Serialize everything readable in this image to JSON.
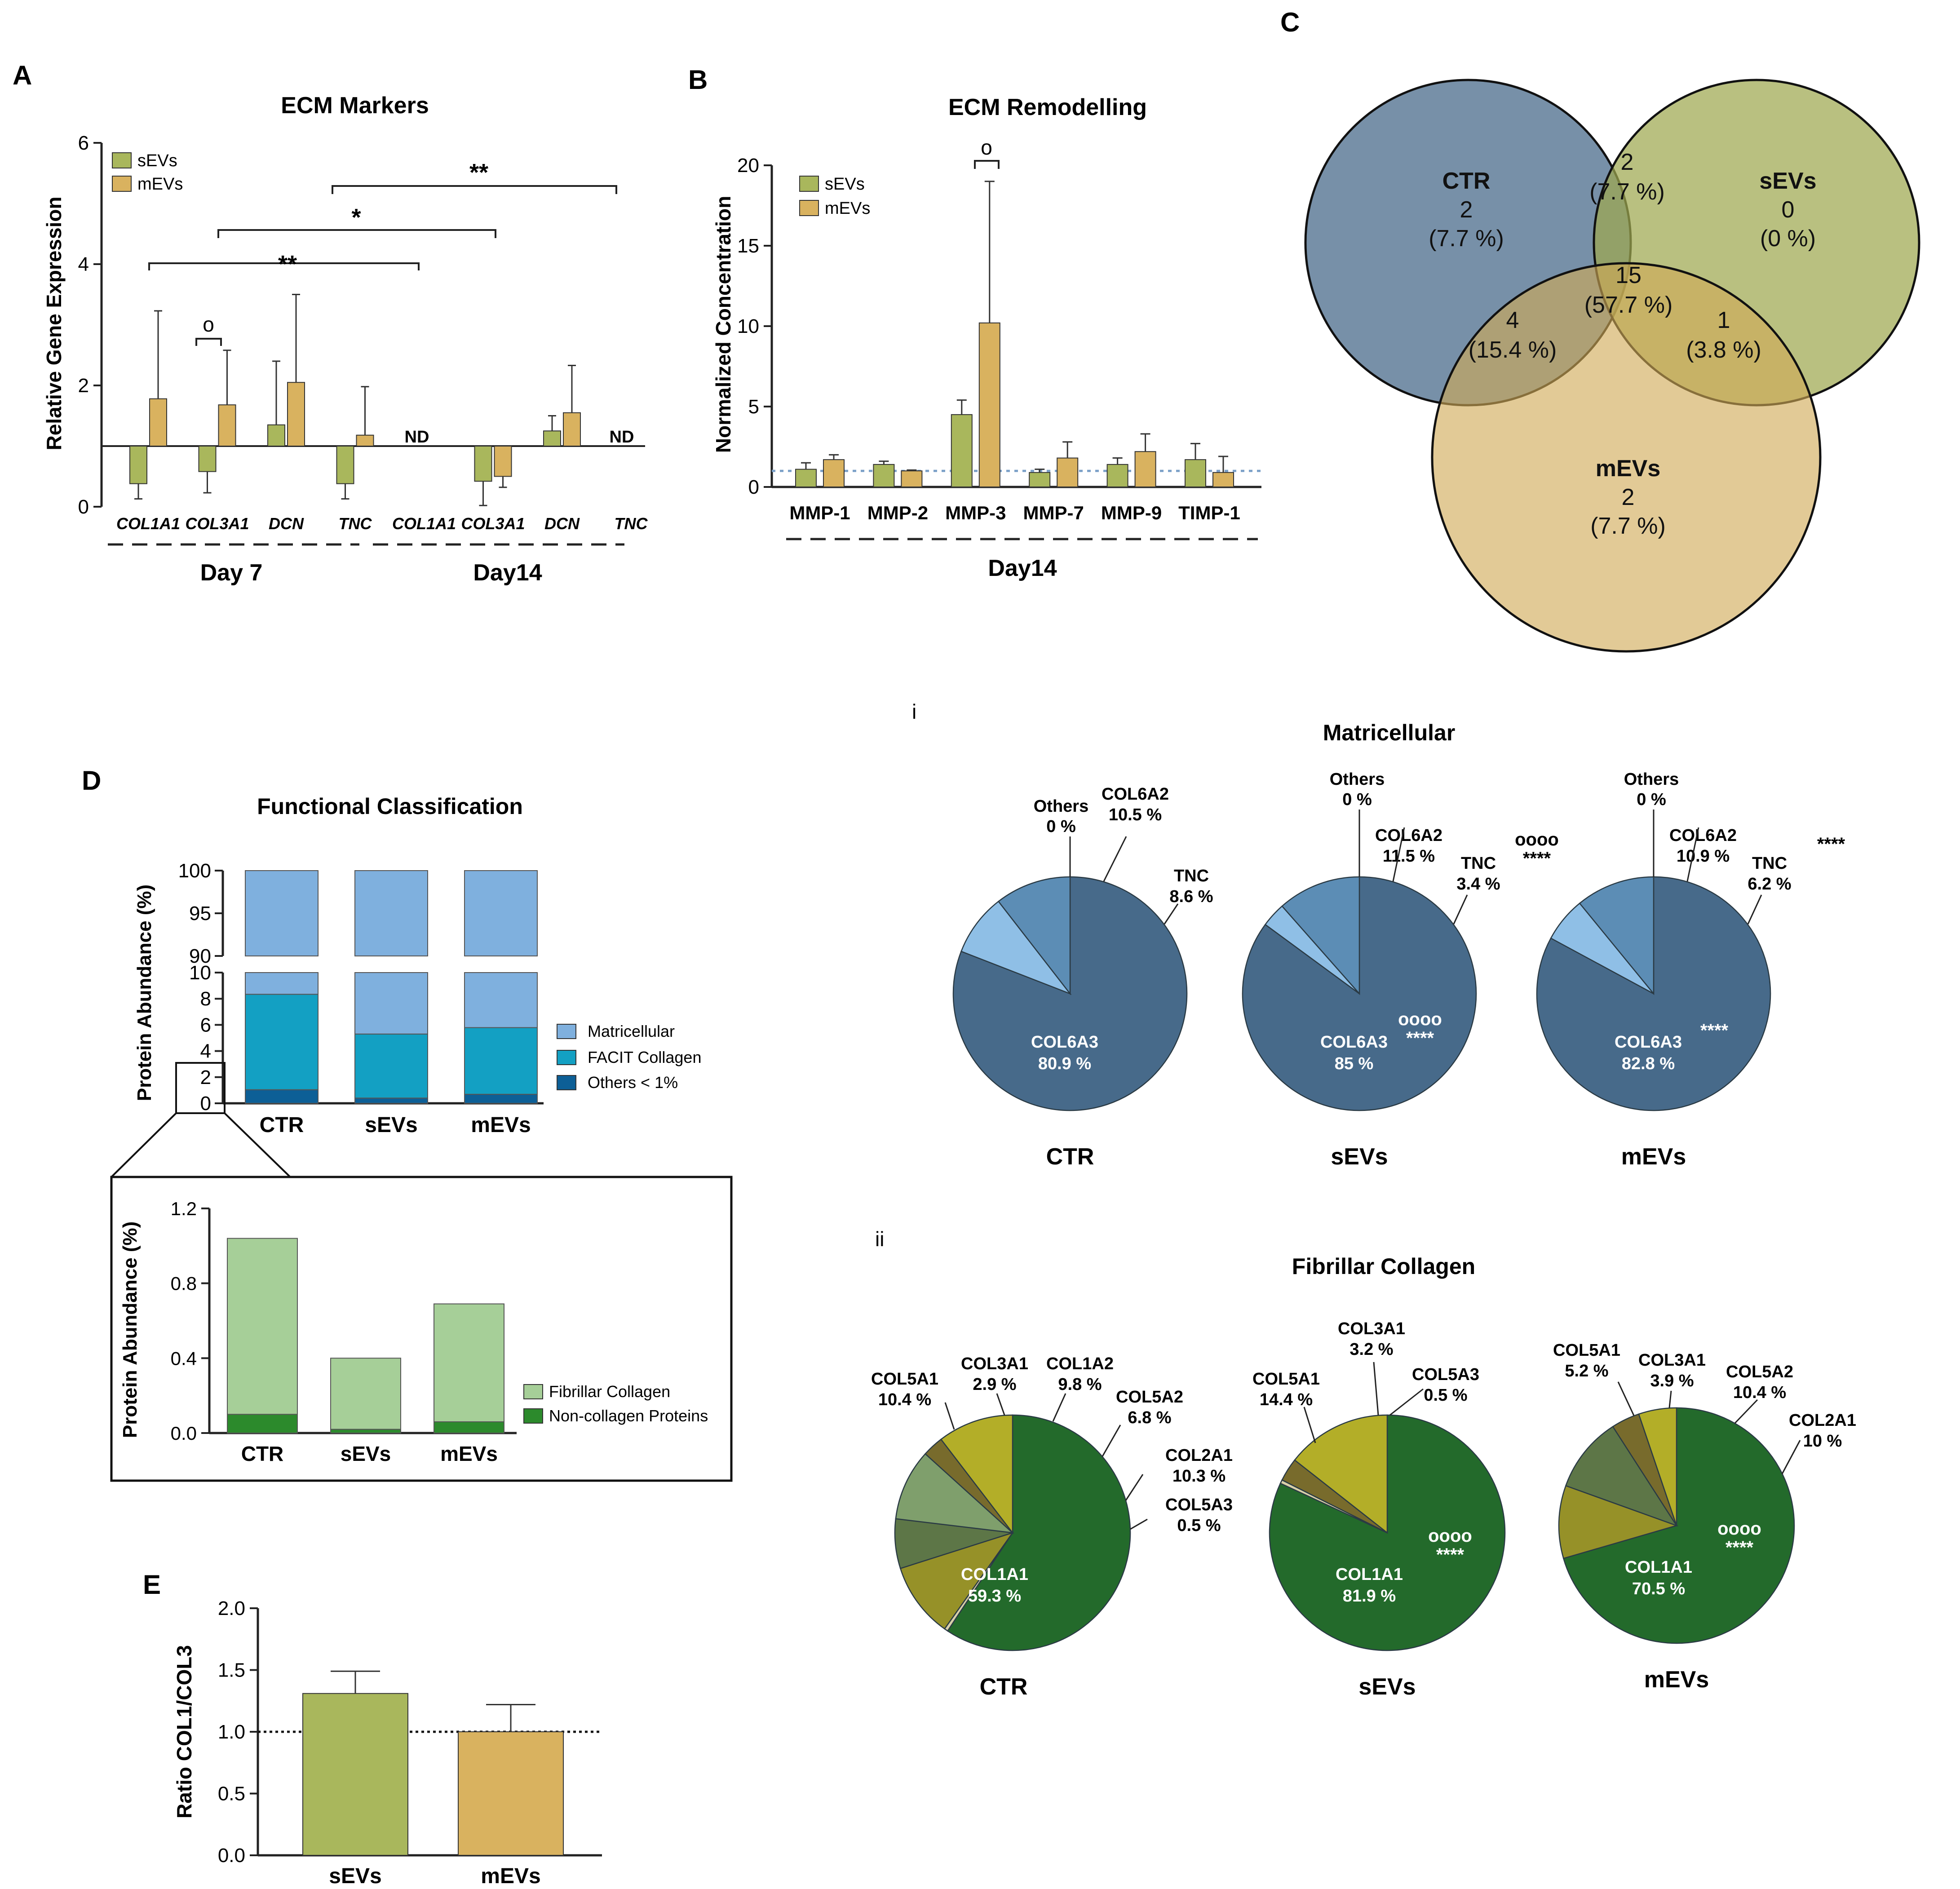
{
  "colors": {
    "sevs": "#a9b75c",
    "mevs": "#d9b25f",
    "ctr_circle": "#6b87a1",
    "sevs_circle": "#9ea84f",
    "mevs_circle": "#d1aa55",
    "matricellular": "#7fb0de",
    "facit": "#13a0c3",
    "others_blue": "#0d5f96",
    "fibrillar": "#a6cf98",
    "noncollagen": "#2c8a2c",
    "col6a3": "#476a8a",
    "col6a2": "#5c8db5",
    "tnc": "#8fbfe6",
    "col1a1": "#236a2b",
    "col5a1": "#b3ae28",
    "col3a1": "#786b2c",
    "col1a2": "#7f9f6c",
    "col5a2": "#5d7647",
    "col2a1": "#969128",
    "col5a3": "#d8d0a8"
  },
  "panel_a": {
    "letter": "A",
    "title": "ECM Markers",
    "ylabel": "Relative Gene Expression",
    "legend": [
      "sEVs",
      "mEVs"
    ],
    "group_labels": [
      "Day 7",
      "Day14"
    ],
    "nd": "ND",
    "circle_mark": "o",
    "sig": [
      "**",
      "*",
      "**"
    ]
  },
  "panel_b": {
    "letter": "B",
    "title": "ECM Remodelling",
    "ylabel": "Normalized Concentration",
    "legend": [
      "sEVs",
      "mEVs"
    ],
    "group_label": "Day14",
    "circle_mark": "o"
  },
  "panel_c": {
    "letter": "C",
    "ctr": {
      "name": "CTR",
      "count": "2",
      "pct": "(7.7 %)"
    },
    "sevs": {
      "name": "sEVs",
      "count": "0",
      "pct": "(0 %)"
    },
    "mevs": {
      "name": "mEVs",
      "count": "2",
      "pct": "(7.7 %)"
    },
    "ctr_sevs": {
      "count": "2",
      "pct": "(7.7 %)"
    },
    "all": {
      "count": "15",
      "pct": "(57.7 %)"
    },
    "ctr_mevs": {
      "count": "4",
      "pct": "(15.4 %)"
    },
    "sevs_mevs": {
      "count": "1",
      "pct": "(3.8 %)"
    }
  },
  "panel_d": {
    "letter": "D",
    "title": "Functional Classification",
    "ylabel": "Protein Abundance (%)",
    "legend": [
      "Matricellular",
      "FACIT Collagen",
      "Others < 1%"
    ],
    "inset_ylabel": "Protein Abundance (%)",
    "inset_legend": [
      "Fibrillar Collagen",
      "Non-collagen Proteins"
    ]
  },
  "panel_e": {
    "letter": "E",
    "ylabel": "Ratio COL1/COL3"
  },
  "pies_i": {
    "roman": "i",
    "title": "Matricellular",
    "pies": [
      {
        "group": "CTR",
        "main": "COL6A3",
        "main_pct": "80.9 %",
        "inner_sig": [],
        "labels": [
          {
            "name": "Others",
            "pct": "0 %"
          },
          {
            "name": "COL6A2",
            "pct": "10.5 %"
          },
          {
            "name": "TNC",
            "pct": "8.6 %"
          }
        ],
        "tnc_sig": []
      },
      {
        "group": "sEVs",
        "main": "COL6A3",
        "main_pct": "85 %",
        "inner_sig": [
          "oooo",
          "****"
        ],
        "labels": [
          {
            "name": "Others",
            "pct": "0 %"
          },
          {
            "name": "COL6A2",
            "pct": "11.5 %"
          },
          {
            "name": "TNC",
            "pct": "3.4 %"
          }
        ],
        "tnc_sig": [
          "oooo",
          "****"
        ]
      },
      {
        "group": "mEVs",
        "main": "COL6A3",
        "main_pct": "82.8 %",
        "inner_sig": [
          "****"
        ],
        "labels": [
          {
            "name": "Others",
            "pct": "0 %"
          },
          {
            "name": "COL6A2",
            "pct": "10.9 %"
          },
          {
            "name": "TNC",
            "pct": "6.2 %"
          }
        ],
        "tnc_sig": [
          "****"
        ]
      }
    ]
  },
  "pies_ii": {
    "roman": "ii",
    "title": "Fibrillar Collagen",
    "pies": [
      {
        "group": "CTR",
        "main": "COL1A1",
        "main_pct": "59.3 %",
        "inner_sig": [],
        "labels": [
          {
            "name": "COL5A1",
            "pct": "10.4 %"
          },
          {
            "name": "COL3A1",
            "pct": "2.9 %"
          },
          {
            "name": "COL1A2",
            "pct": "9.8 %"
          },
          {
            "name": "COL5A2",
            "pct": "6.8 %"
          },
          {
            "name": "COL2A1",
            "pct": "10.3 %"
          },
          {
            "name": "COL5A3",
            "pct": "0.5 %"
          }
        ]
      },
      {
        "group": "sEVs",
        "main": "COL1A1",
        "main_pct": "81.9 %",
        "inner_sig": [
          "oooo",
          "****"
        ],
        "labels": [
          {
            "name": "COL5A1",
            "pct": "14.4 %"
          },
          {
            "name": "COL3A1",
            "pct": "3.2 %"
          },
          {
            "name": "COL5A3",
            "pct": "0.5 %"
          }
        ]
      },
      {
        "group": "mEVs",
        "main": "COL1A1",
        "main_pct": "70.5 %",
        "inner_sig": [
          "oooo",
          "****"
        ],
        "labels": [
          {
            "name": "COL5A1",
            "pct": "5.2 %"
          },
          {
            "name": "COL3A1",
            "pct": "3.9 %"
          },
          {
            "name": "COL5A2",
            "pct": "10.4 %"
          },
          {
            "name": "COL2A1",
            "pct": "10 %"
          }
        ]
      }
    ]
  },
  "chart_data": [
    {
      "id": "A",
      "type": "bar",
      "title": "ECM Markers",
      "ylabel": "Relative Gene Expression",
      "ylim": [
        0,
        6
      ],
      "baseline": 1,
      "yticks": [
        0,
        2,
        4,
        6
      ],
      "categories": [
        "COL1A1",
        "COL3A1",
        "DCN",
        "TNC",
        "COL1A1",
        "COL3A1",
        "DCN",
        "TNC"
      ],
      "groups": [
        "Day 7",
        "Day 7",
        "Day 7",
        "Day 7",
        "Day14",
        "Day14",
        "Day14",
        "Day14"
      ],
      "series": [
        {
          "name": "sEVs",
          "values": [
            0.38,
            0.58,
            1.35,
            0.38,
            null,
            0.42,
            1.25,
            null
          ],
          "errors": [
            0.25,
            0.35,
            1.05,
            0.25,
            null,
            0.4,
            0.25,
            null
          ]
        },
        {
          "name": "mEVs",
          "values": [
            1.78,
            1.68,
            2.05,
            1.18,
            null,
            0.5,
            1.55,
            null
          ],
          "errors": [
            1.45,
            0.9,
            1.45,
            0.8,
            null,
            0.18,
            0.78,
            null
          ]
        }
      ]
    },
    {
      "id": "B",
      "type": "bar",
      "title": "ECM Remodelling",
      "ylabel": "Normalized Concentration",
      "ylim": [
        0,
        20
      ],
      "baseline": 1,
      "yticks": [
        0,
        5,
        10,
        15,
        20
      ],
      "categories": [
        "MMP-1",
        "MMP-2",
        "MMP-3",
        "MMP-7",
        "MMP-9",
        "TIMP-1"
      ],
      "series": [
        {
          "name": "sEVs",
          "values": [
            1.1,
            1.4,
            4.5,
            0.9,
            1.4,
            1.7
          ],
          "errors": [
            0.4,
            0.2,
            0.9,
            0.2,
            0.4,
            1.0
          ]
        },
        {
          "name": "mEVs",
          "values": [
            1.7,
            1.0,
            10.2,
            1.8,
            2.2,
            0.9
          ],
          "errors": [
            0.3,
            0.05,
            8.8,
            1.0,
            1.1,
            1.0
          ]
        }
      ]
    },
    {
      "id": "C",
      "type": "venn",
      "sets": [
        "CTR",
        "sEVs",
        "mEVs"
      ],
      "regions": [
        {
          "sets": [
            "CTR"
          ],
          "count": 2,
          "percent": 7.7
        },
        {
          "sets": [
            "sEVs"
          ],
          "count": 0,
          "percent": 0
        },
        {
          "sets": [
            "mEVs"
          ],
          "count": 2,
          "percent": 7.7
        },
        {
          "sets": [
            "CTR",
            "sEVs"
          ],
          "count": 2,
          "percent": 7.7
        },
        {
          "sets": [
            "CTR",
            "mEVs"
          ],
          "count": 4,
          "percent": 15.4
        },
        {
          "sets": [
            "sEVs",
            "mEVs"
          ],
          "count": 1,
          "percent": 3.8
        },
        {
          "sets": [
            "CTR",
            "sEVs",
            "mEVs"
          ],
          "count": 15,
          "percent": 57.7
        }
      ]
    },
    {
      "id": "D",
      "type": "bar",
      "stacked": true,
      "title": "Functional Classification",
      "ylabel": "Protein Abundance (%)",
      "categories": [
        "CTR",
        "sEVs",
        "mEVs"
      ],
      "axis_break": [
        10,
        90
      ],
      "yticks": [
        0,
        2,
        4,
        6,
        8,
        10,
        90,
        95,
        100
      ],
      "series": [
        {
          "name": "Others < 1%",
          "values": [
            1.04,
            0.4,
            0.69
          ]
        },
        {
          "name": "FACIT Collagen",
          "values": [
            7.3,
            4.9,
            5.1
          ]
        },
        {
          "name": "Matricellular",
          "values": [
            91.66,
            94.7,
            94.21
          ]
        }
      ]
    },
    {
      "id": "D-inset",
      "type": "bar",
      "stacked": true,
      "ylabel": "Protein Abundance (%)",
      "categories": [
        "CTR",
        "sEVs",
        "mEVs"
      ],
      "ylim": [
        0,
        1.2
      ],
      "yticks": [
        0.0,
        0.4,
        0.8,
        1.2
      ],
      "series": [
        {
          "name": "Non-collagen Proteins",
          "values": [
            0.1,
            0.02,
            0.06
          ]
        },
        {
          "name": "Fibrillar Collagen",
          "values": [
            0.94,
            0.38,
            0.63
          ]
        }
      ]
    },
    {
      "id": "E",
      "type": "bar",
      "ylabel": "Ratio COL1/COL3",
      "categories": [
        "sEVs",
        "mEVs"
      ],
      "values": [
        1.31,
        1.0
      ],
      "errors": [
        0.18,
        0.22
      ],
      "ylim": [
        0,
        2.0
      ],
      "yticks": [
        0.0,
        0.5,
        1.0,
        1.5,
        2.0
      ],
      "reference_line": 1.0
    },
    {
      "id": "i",
      "type": "pie",
      "title": "Matricellular",
      "pies": [
        {
          "group": "CTR",
          "slices": [
            {
              "name": "COL6A3",
              "value": 80.9
            },
            {
              "name": "TNC",
              "value": 8.6
            },
            {
              "name": "COL6A2",
              "value": 10.5
            },
            {
              "name": "Others",
              "value": 0
            }
          ]
        },
        {
          "group": "sEVs",
          "slices": [
            {
              "name": "COL6A3",
              "value": 85
            },
            {
              "name": "TNC",
              "value": 3.4
            },
            {
              "name": "COL6A2",
              "value": 11.5
            },
            {
              "name": "Others",
              "value": 0
            }
          ]
        },
        {
          "group": "mEVs",
          "slices": [
            {
              "name": "COL6A3",
              "value": 82.8
            },
            {
              "name": "TNC",
              "value": 6.2
            },
            {
              "name": "COL6A2",
              "value": 10.9
            },
            {
              "name": "Others",
              "value": 0
            }
          ]
        }
      ]
    },
    {
      "id": "ii",
      "type": "pie",
      "title": "Fibrillar Collagen",
      "pies": [
        {
          "group": "CTR",
          "slices": [
            {
              "name": "COL1A1",
              "value": 59.3
            },
            {
              "name": "COL5A3",
              "value": 0.5
            },
            {
              "name": "COL2A1",
              "value": 10.3
            },
            {
              "name": "COL5A2",
              "value": 6.8
            },
            {
              "name": "COL1A2",
              "value": 9.8
            },
            {
              "name": "COL3A1",
              "value": 2.9
            },
            {
              "name": "COL5A1",
              "value": 10.4
            }
          ]
        },
        {
          "group": "sEVs",
          "slices": [
            {
              "name": "COL1A1",
              "value": 81.9
            },
            {
              "name": "COL5A3",
              "value": 0.5
            },
            {
              "name": "COL3A1",
              "value": 3.2
            },
            {
              "name": "COL5A1",
              "value": 14.4
            }
          ]
        },
        {
          "group": "mEVs",
          "slices": [
            {
              "name": "COL1A1",
              "value": 70.5
            },
            {
              "name": "COL2A1",
              "value": 10
            },
            {
              "name": "COL5A2",
              "value": 10.4
            },
            {
              "name": "COL3A1",
              "value": 3.9
            },
            {
              "name": "COL5A1",
              "value": 5.2
            }
          ]
        }
      ]
    }
  ]
}
